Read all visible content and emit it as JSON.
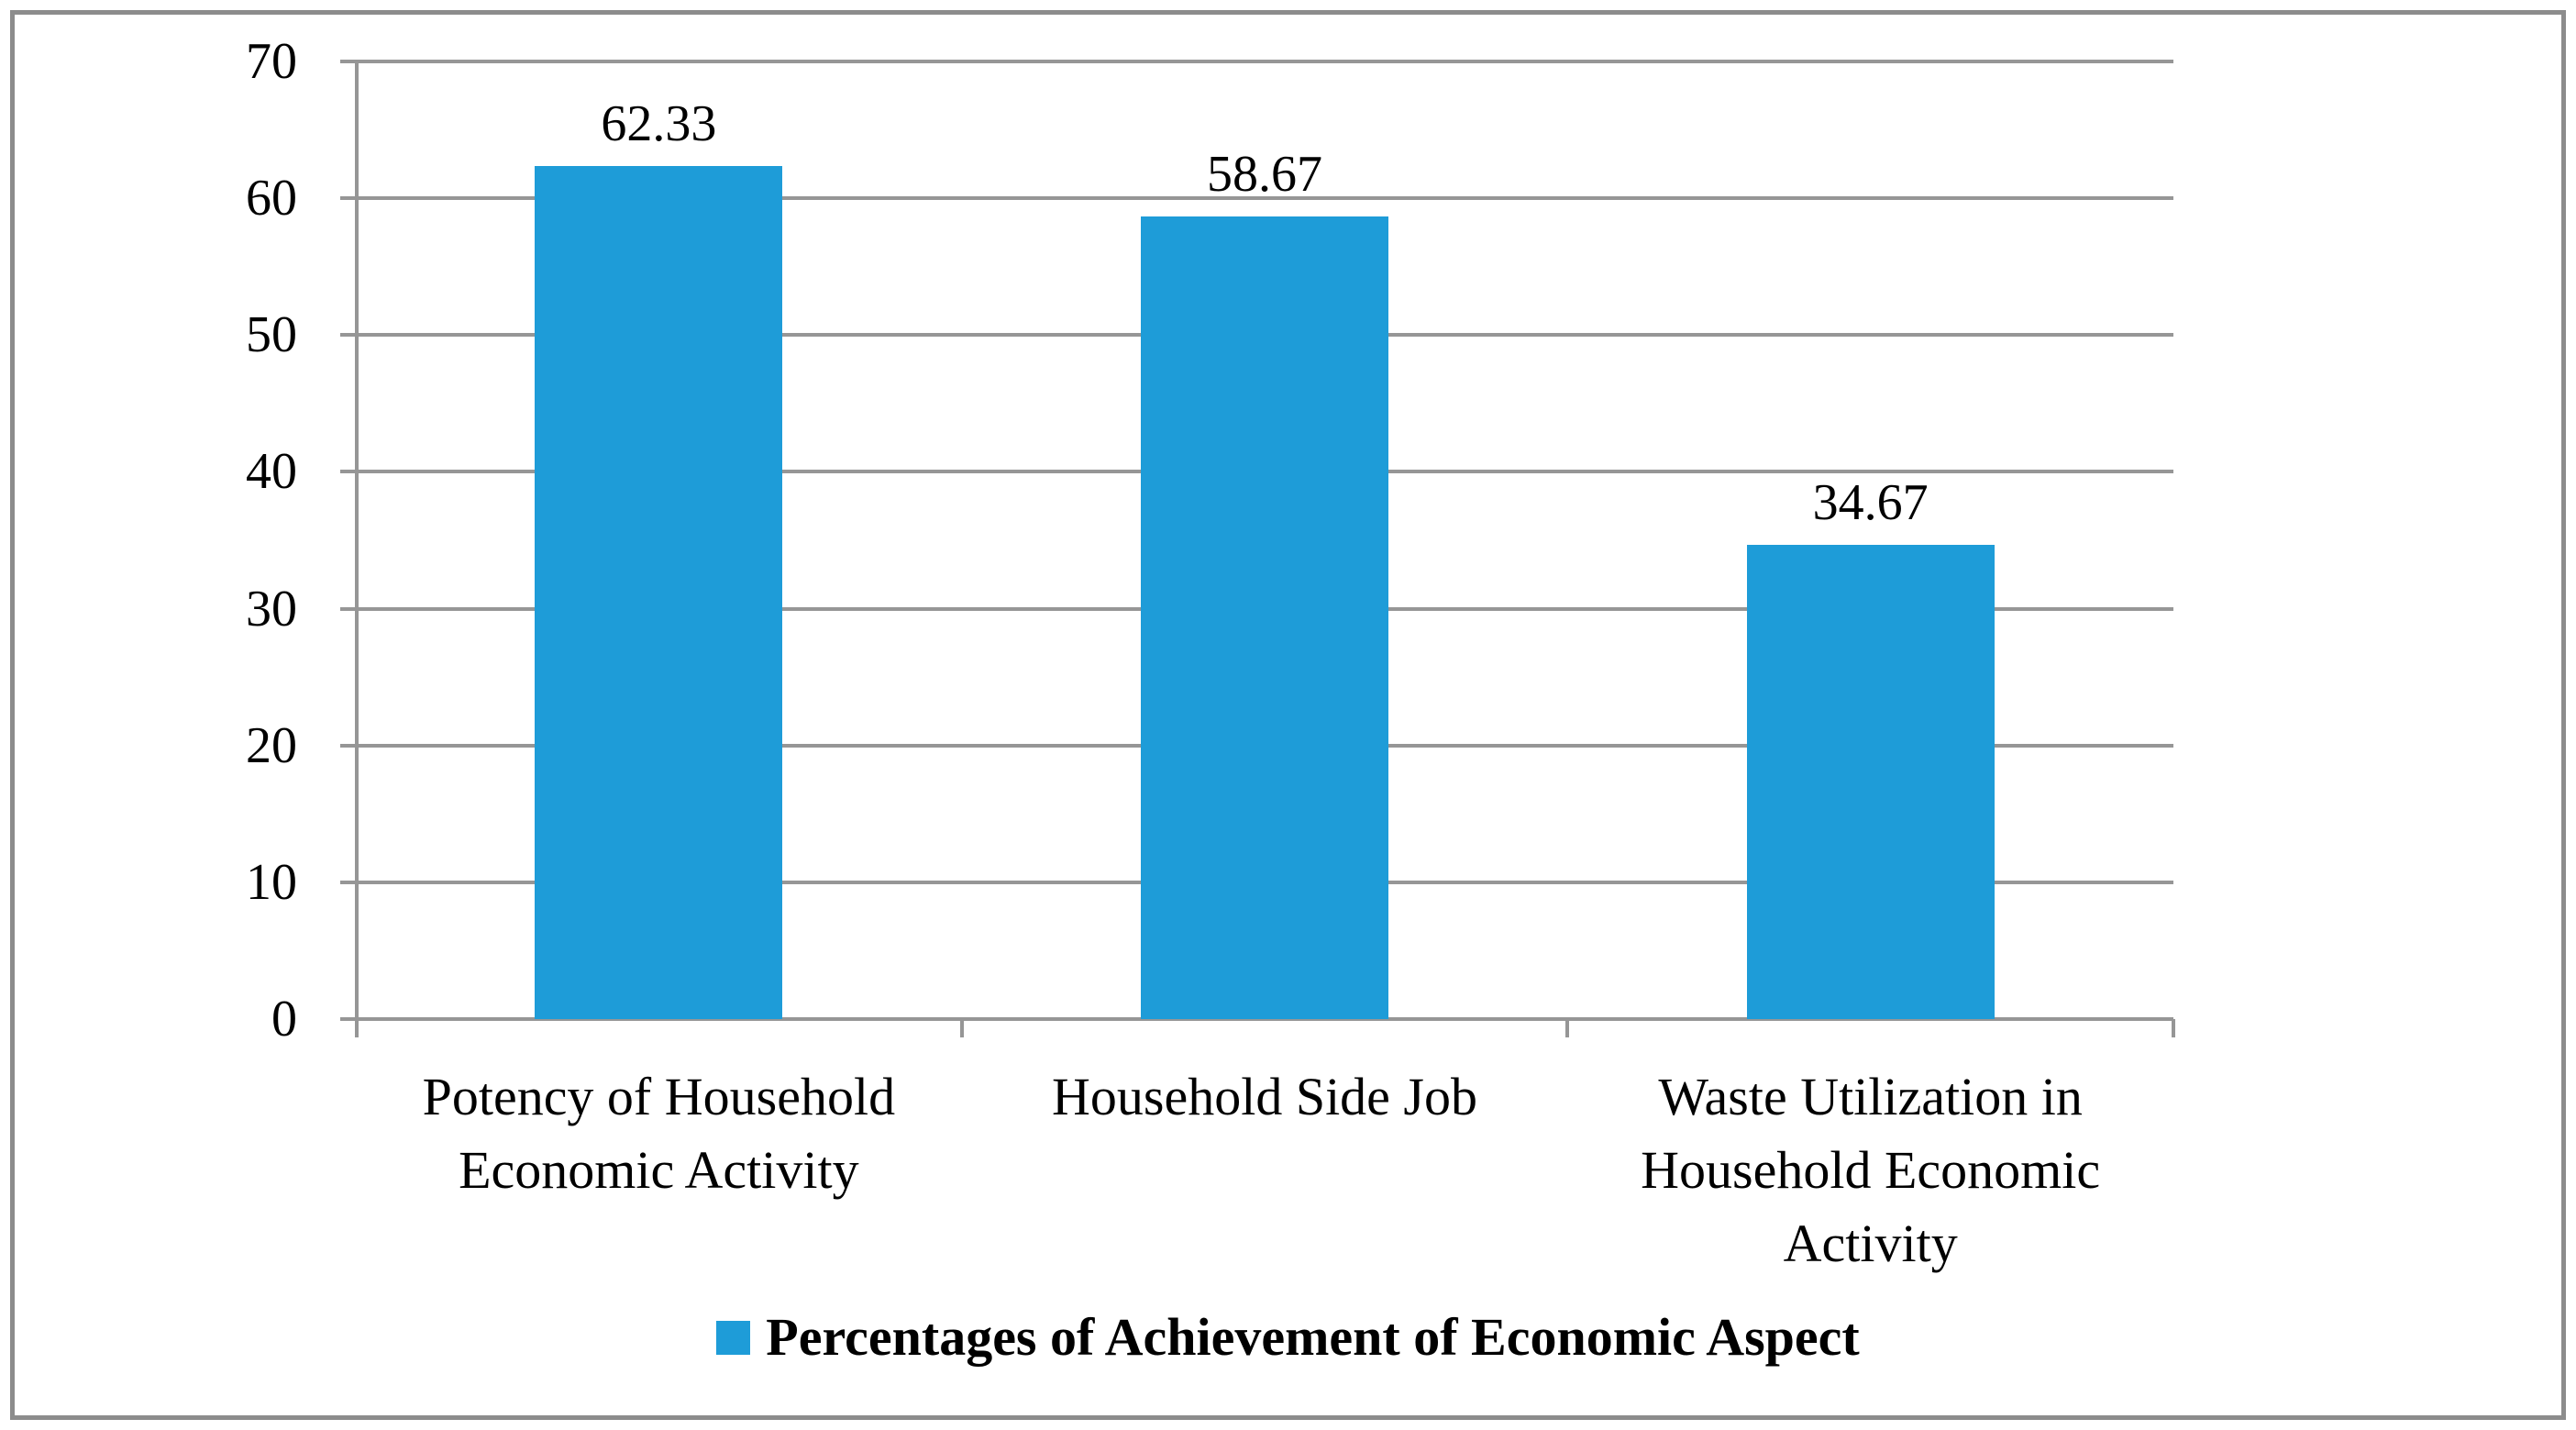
{
  "chart_data": {
    "type": "bar",
    "title": "",
    "categories": [
      "Potency of Household Economic Activity",
      "Household Side Job",
      "Waste Utilization in Household Economic Activity"
    ],
    "values": [
      62.33,
      58.67,
      34.67
    ],
    "data_labels": [
      "62.33",
      "58.67",
      "34.67"
    ],
    "legend": [
      {
        "label": "Percentages of Achievement of Economic Aspect",
        "color": "#1E9CD8"
      }
    ],
    "legend_position": "bottom",
    "ylim": [
      0,
      70
    ],
    "ytick_interval": 10,
    "yticks": [
      "0",
      "10",
      "20",
      "30",
      "40",
      "50",
      "60",
      "70"
    ],
    "grid": true,
    "xlabel": "",
    "ylabel": "",
    "colors": {
      "bar": "#1E9CD8",
      "gridline": "#969696",
      "axis": "#969696",
      "frame": "#8C8C8C",
      "text": "#000000",
      "background": "#FFFFFF"
    }
  }
}
